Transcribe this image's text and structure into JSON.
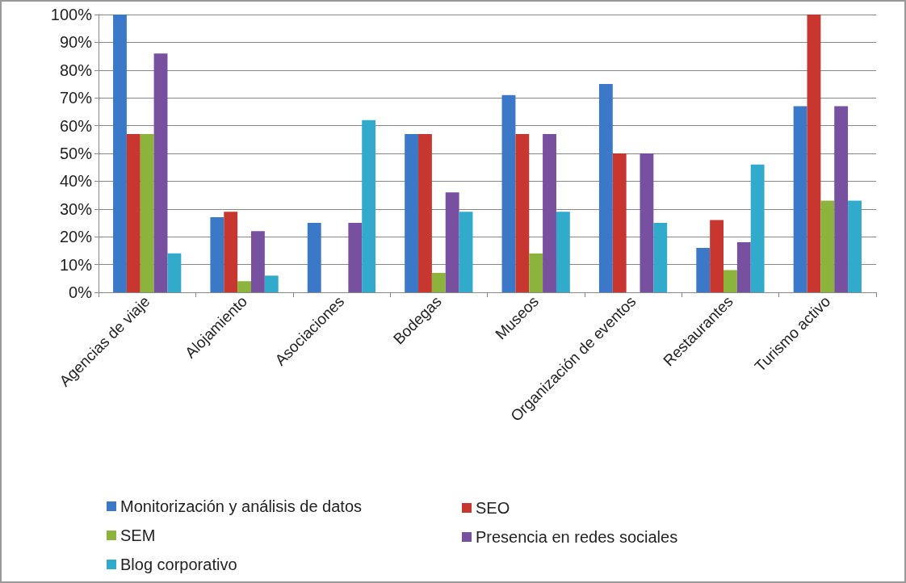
{
  "chart_data": {
    "type": "bar",
    "categories": [
      "Agencias de viaje",
      "Alojamiento",
      "Asociaciones",
      "Bodegas",
      "Museos",
      "Organización de eventos",
      "Restaurantes",
      "Turismo activo"
    ],
    "series": [
      {
        "name": "Monitorización y análisis de datos",
        "color": "#3c78c8",
        "values": [
          100,
          27,
          25,
          57,
          71,
          75,
          16,
          67
        ]
      },
      {
        "name": "SEO",
        "color": "#c8372f",
        "values": [
          57,
          29,
          0,
          57,
          57,
          50,
          26,
          100
        ]
      },
      {
        "name": "SEM",
        "color": "#8cb43c",
        "values": [
          57,
          4,
          0,
          7,
          14,
          0,
          8,
          33
        ]
      },
      {
        "name": "Presencia en redes sociales",
        "color": "#7750a0",
        "values": [
          86,
          22,
          25,
          36,
          57,
          50,
          18,
          67
        ]
      },
      {
        "name": "Blog corporativo",
        "color": "#32aacc",
        "values": [
          14,
          6,
          62,
          29,
          29,
          25,
          46,
          33
        ]
      }
    ],
    "ylim": [
      0,
      100
    ],
    "yticks": [
      {
        "value": 0,
        "label": "0%"
      },
      {
        "value": 10,
        "label": "10%"
      },
      {
        "value": 20,
        "label": "20%"
      },
      {
        "value": 30,
        "label": "30%"
      },
      {
        "value": 40,
        "label": "40%"
      },
      {
        "value": 50,
        "label": "50%"
      },
      {
        "value": 60,
        "label": "60%"
      },
      {
        "value": 70,
        "label": "70%"
      },
      {
        "value": 80,
        "label": "80%"
      },
      {
        "value": 90,
        "label": "90%"
      },
      {
        "value": 100,
        "label": "100%"
      }
    ],
    "grid": "y",
    "legend": "bottom"
  }
}
